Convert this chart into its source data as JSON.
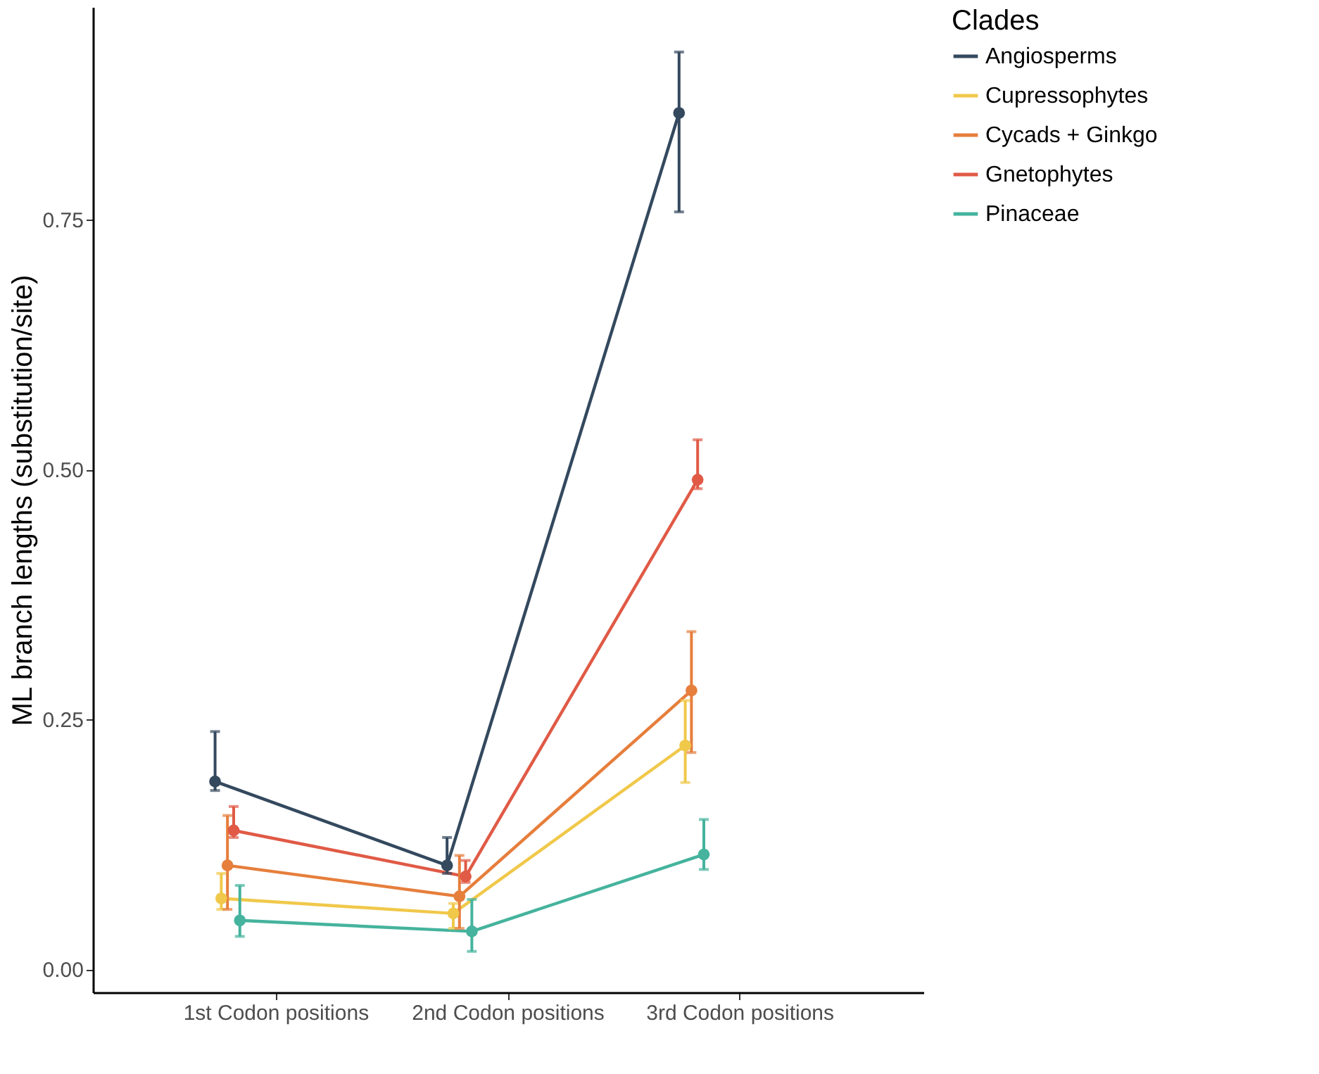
{
  "chart_data": {
    "type": "line",
    "ylabel": "ML branch lengths (substitution/site)",
    "legend_title": "Clades",
    "legend": "right",
    "grid": false,
    "marker": "circle",
    "line_style": "solid",
    "categories": [
      "1st Codon positions",
      "2nd Codon positions",
      "3rd Codon positions"
    ],
    "ylim": [
      -0.023,
      0.963
    ],
    "yticks": [
      {
        "value": 0,
        "label": "0.00"
      },
      {
        "value": 0.25,
        "label": "0.25"
      },
      {
        "value": 0.5,
        "label": "0.50"
      },
      {
        "value": 0.75,
        "label": "0.75"
      }
    ],
    "series": [
      {
        "name": "Angiosperms",
        "color": "#34495e",
        "values": [
          0.188,
          0.104,
          0.857
        ],
        "errors": [
          [
            0.179,
            0.238
          ],
          [
            0.096,
            0.132
          ],
          [
            0.758,
            0.918
          ]
        ]
      },
      {
        "name": "Cupressophytes",
        "color": "#f0c84a",
        "values": [
          0.071,
          0.056,
          0.224
        ],
        "errors": [
          [
            0.06,
            0.096
          ],
          [
            0.041,
            0.066
          ],
          [
            0.187,
            0.269
          ]
        ]
      },
      {
        "name": "Cycads + Ginkgo",
        "color": "#e67e3c",
        "values": [
          0.104,
          0.073,
          0.279
        ],
        "errors": [
          [
            0.06,
            0.154
          ],
          [
            0.041,
            0.114
          ],
          [
            0.217,
            0.338
          ]
        ]
      },
      {
        "name": "Gnetophytes",
        "color": "#e05a46",
        "values": [
          0.139,
          0.093,
          0.49
        ],
        "errors": [
          [
            0.132,
            0.163
          ],
          [
            0.087,
            0.109
          ],
          [
            0.481,
            0.53
          ]
        ]
      },
      {
        "name": "Pinaceae",
        "color": "#45b39d",
        "values": [
          0.049,
          0.038,
          0.115
        ],
        "errors": [
          [
            0.033,
            0.084
          ],
          [
            0.018,
            0.07
          ],
          [
            0.1,
            0.15
          ]
        ]
      }
    ]
  }
}
